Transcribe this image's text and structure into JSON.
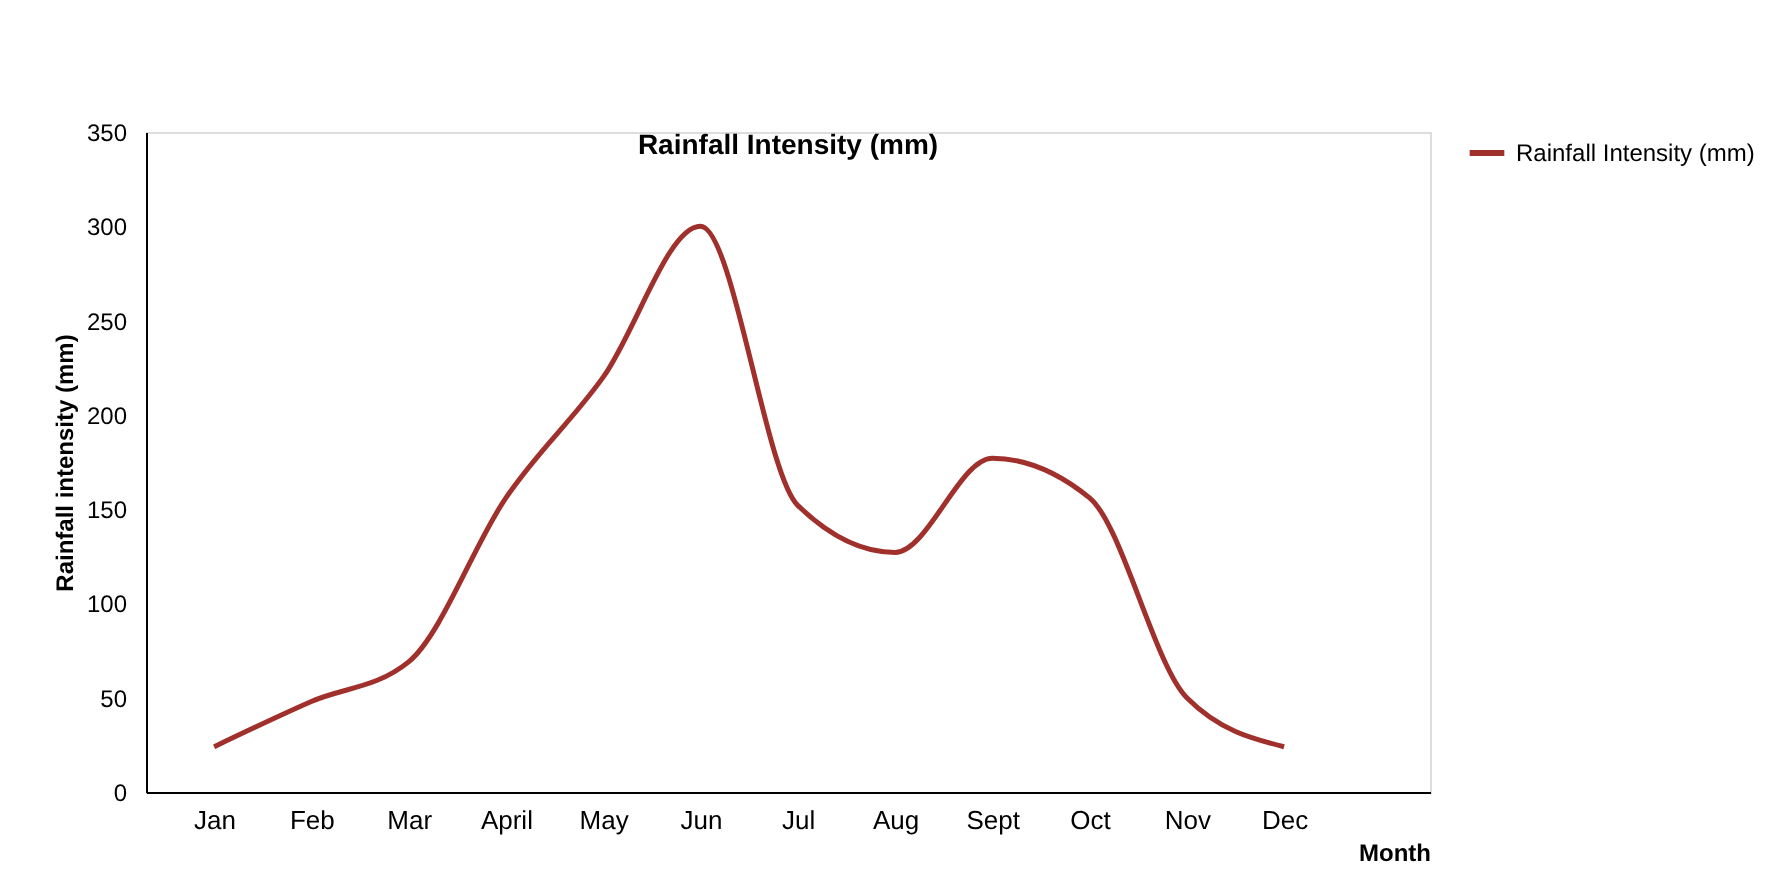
{
  "chart_data": {
    "type": "line",
    "title": "Rainfall Intensity (mm)",
    "xlabel": "Month",
    "ylabel": "Rainfall intensity (mm)",
    "categories": [
      "Jan",
      "Feb",
      "Mar",
      "April",
      "May",
      "Jun",
      "Jul",
      "Aug",
      "Sept",
      "Oct",
      "Nov",
      "Dec"
    ],
    "series": [
      {
        "name": "Rainfall Intensity (mm)",
        "color": "#a0302c",
        "values": [
          24,
          48,
          69,
          156,
          220,
          300,
          152,
          127,
          177,
          156,
          50,
          24
        ]
      }
    ],
    "ylim": [
      0,
      350
    ],
    "yticks": [
      0,
      50,
      100,
      150,
      200,
      250,
      300,
      350
    ],
    "grid": false,
    "legend": "right",
    "marker": "none",
    "line_style": "solid"
  }
}
